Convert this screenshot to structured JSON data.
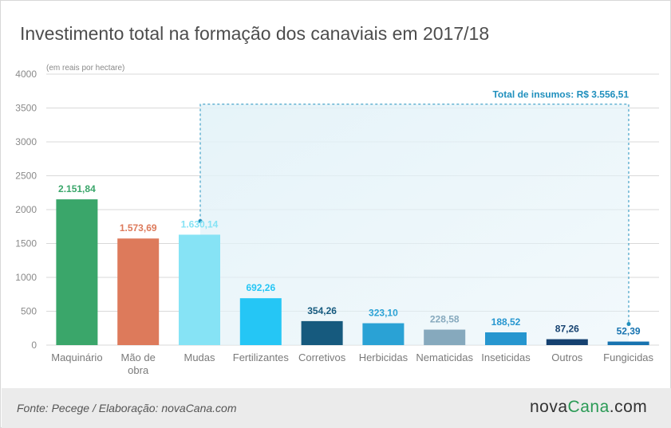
{
  "title": "Investimento total na formação dos canaviais em 2017/18",
  "source": "Fonte: Pecege / Elaboração: novaCana.com",
  "logo": {
    "part1": "nova",
    "part2": "Cana",
    "part3": ".com"
  },
  "colors": {
    "grid": "#d9d9d9",
    "tick_text": "#8a8a8a",
    "insumos": "#1f8fbd",
    "insumos_fill": "#e3f2f8"
  },
  "chart_data": {
    "type": "bar",
    "title": "Investimento total na formação dos canaviais em 2017/18",
    "unit_note": "(em reais por hectare)",
    "ylim": [
      0,
      4000
    ],
    "yticks": [
      0,
      500,
      1000,
      1500,
      2000,
      2500,
      3000,
      3500,
      4000
    ],
    "grid": true,
    "categories": [
      [
        "Maquinário"
      ],
      [
        "Mão de",
        "obra"
      ],
      [
        "Mudas"
      ],
      [
        "Fertilizantes"
      ],
      [
        "Corretivos"
      ],
      [
        "Herbicidas"
      ],
      [
        "Nematicidas"
      ],
      [
        "Inseticidas"
      ],
      [
        "Outros"
      ],
      [
        "Fungicidas"
      ]
    ],
    "values": [
      2151.84,
      1573.69,
      1630.14,
      692.26,
      354.26,
      323.1,
      228.58,
      188.52,
      87.26,
      52.39
    ],
    "labels": [
      "2.151,84",
      "1.573,69",
      "1.630,14",
      "692,26",
      "354,26",
      "323,10",
      "228,58",
      "188,52",
      "87,26",
      "52,39"
    ],
    "colors": [
      "#3aa66a",
      "#dd7a5b",
      "#86e3f5",
      "#25c6f5",
      "#165a7e",
      "#2aa2d5",
      "#86a9bd",
      "#2696cf",
      "#154170",
      "#1773b0"
    ],
    "annotation": {
      "text": "Total de insumos: R$ 3.556,51",
      "value": 3556.51,
      "from_category": 2,
      "to_category": 9
    }
  }
}
